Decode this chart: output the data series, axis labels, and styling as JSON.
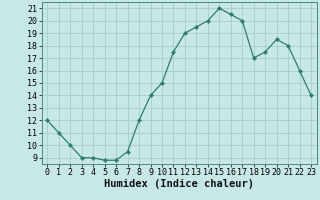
{
  "x": [
    0,
    1,
    2,
    3,
    4,
    5,
    6,
    7,
    8,
    9,
    10,
    11,
    12,
    13,
    14,
    15,
    16,
    17,
    18,
    19,
    20,
    21,
    22,
    23
  ],
  "y": [
    12,
    11,
    10,
    9,
    9,
    8.8,
    8.8,
    9.5,
    12,
    14,
    15,
    17.5,
    19,
    19.5,
    20,
    21,
    20.5,
    20,
    17,
    17.5,
    18.5,
    18,
    16,
    14
  ],
  "title": "",
  "xlabel": "Humidex (Indice chaleur)",
  "ylabel": "",
  "xlim": [
    -0.5,
    23.5
  ],
  "ylim": [
    8.5,
    21.5
  ],
  "yticks": [
    9,
    10,
    11,
    12,
    13,
    14,
    15,
    16,
    17,
    18,
    19,
    20,
    21
  ],
  "xticks": [
    0,
    1,
    2,
    3,
    4,
    5,
    6,
    7,
    8,
    9,
    10,
    11,
    12,
    13,
    14,
    15,
    16,
    17,
    18,
    19,
    20,
    21,
    22,
    23
  ],
  "line_color": "#2e7d6e",
  "marker_color": "#2e7d6e",
  "bg_color": "#c8e8e8",
  "grid_color": "#a0c8c8",
  "tick_fontsize": 6.0,
  "xlabel_fontsize": 7.5
}
